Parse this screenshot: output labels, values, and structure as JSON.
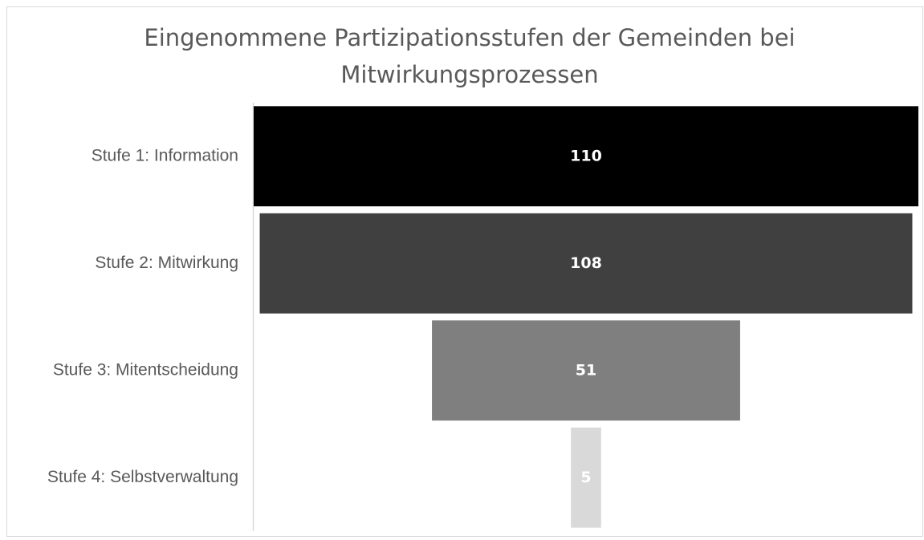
{
  "chart_data": {
    "type": "funnel",
    "title": "Eingenommene Partizipationsstufen der Gemeinden bei Mitwirkungsprozessen",
    "categories": [
      "Stufe 1: Information",
      "Stufe 2: Mitwirkung",
      "Stufe 3: Mitentscheidung",
      "Stufe 4: Selbstverwaltung"
    ],
    "values": [
      110,
      108,
      51,
      5
    ],
    "colors": [
      "#000000",
      "#404040",
      "#7f7f7f",
      "#d9d9d9"
    ]
  }
}
